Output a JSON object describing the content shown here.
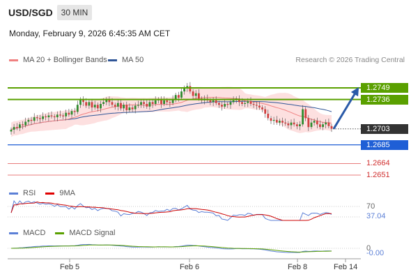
{
  "header": {
    "pair": "USD/SGD",
    "timeframe": "30 MIN",
    "datetime": "Monday, February 9, 2026 6:45:35 AM CET"
  },
  "legend": {
    "ma20_label": "MA 20 + Bollinger Bands",
    "ma50_label": "MA 50",
    "rsi_label": "RSI",
    "rsi_ma_label": "9MA",
    "macd_label": "MACD",
    "macd_signal_label": "MACD Signal"
  },
  "credit": "Research © 2026 Trading Central",
  "colors": {
    "ma20": "#f08080",
    "ma50": "#2f5597",
    "bollinger": "#fde0e0",
    "resistance": "#5aa000",
    "pivot": "#1f5fd6",
    "support": "#e05050",
    "current": "#333333",
    "arrow": "#2a5aa8"
  },
  "chart_data": {
    "type": "candlestick",
    "series": "USD/SGD 30 MIN",
    "x_ticks": [
      "Feb 5",
      "Feb 6",
      "Feb 8",
      "Feb 14"
    ],
    "price_axis": {
      "current": 1.2703,
      "resistance": [
        1.2749,
        1.2736
      ],
      "pivot": 1.2685,
      "support": [
        1.2664,
        1.2651
      ]
    },
    "price_labels": {
      "r1": "1.2749",
      "r2": "1.2736",
      "current": "1.2703",
      "pivot": "1.2685",
      "s1": "1.2664",
      "s2": "1.2651"
    },
    "closes": [
      1.2702,
      1.2705,
      1.2704,
      1.2708,
      1.2707,
      1.2711,
      1.2713,
      1.2712,
      1.2716,
      1.2715,
      1.2714,
      1.2717,
      1.2716,
      1.2718,
      1.2717,
      1.2716,
      1.2719,
      1.2718,
      1.2717,
      1.2721,
      1.2719,
      1.2723,
      1.2722,
      1.273,
      1.2736,
      1.2733,
      1.2729,
      1.2733,
      1.2727,
      1.273,
      1.2726,
      1.2731,
      1.2733,
      1.2736,
      1.2733,
      1.273,
      1.2728,
      1.2732,
      1.2726,
      1.273,
      1.2724,
      1.2727,
      1.2725,
      1.2729,
      1.273,
      1.2733,
      1.2731,
      1.2728,
      1.2733,
      1.2731,
      1.2735,
      1.2736,
      1.2731,
      1.2735,
      1.2733,
      1.2732,
      1.2736,
      1.2741,
      1.2738,
      1.2745,
      1.2749,
      1.2751,
      1.2745,
      1.274,
      1.2743,
      1.2737,
      1.2735,
      1.2737,
      1.2735,
      1.2733,
      1.2735,
      1.2732,
      1.273,
      1.2728,
      1.2731,
      1.273,
      1.2733,
      1.2735,
      1.2737,
      1.2733,
      1.2731,
      1.2732,
      1.2734,
      1.2731,
      1.273,
      1.2729,
      1.2727,
      1.2725,
      1.272,
      1.2715,
      1.2712,
      1.2713,
      1.271,
      1.2712,
      1.271,
      1.2709,
      1.2707,
      1.271,
      1.2708,
      1.2706,
      1.2708,
      1.2725,
      1.2715,
      1.2705,
      1.271,
      1.2712,
      1.2708,
      1.2705,
      1.2708,
      1.271,
      1.2706,
      1.2703
    ],
    "rsi": {
      "level": 70,
      "current": 37.04,
      "level_label": "70",
      "current_label": "37.04"
    },
    "macd": {
      "zero_label": "0",
      "current": -0.0,
      "current_label": "-0.00"
    }
  }
}
